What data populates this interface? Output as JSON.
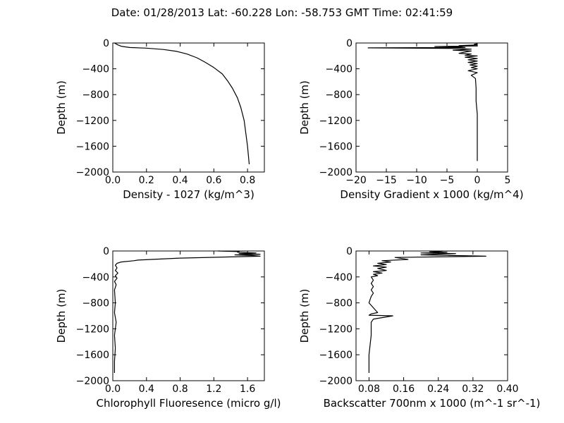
{
  "figure": {
    "suptitle": "Date: 01/28/2013  Lat:  -60.228 Lon:  -58.753  GMT Time: 02:41:59"
  },
  "chart_data": [
    {
      "type": "line",
      "xlabel": "Density - 1027 (kg/m^3)",
      "ylabel": "Depth (m)",
      "xlim": [
        0.0,
        0.9
      ],
      "ylim": [
        -2000,
        0
      ],
      "xticks": [
        0.0,
        0.2,
        0.4,
        0.6,
        0.8
      ],
      "xtick_labels": [
        "0.0",
        "0.2",
        "0.4",
        "0.6",
        "0.8"
      ],
      "yticks": [
        0,
        -400,
        -800,
        -1200,
        -1600,
        -2000
      ],
      "ytick_labels": [
        "0",
        "−400",
        "−800",
        "−1200",
        "−1600",
        "−2000"
      ],
      "grid": false,
      "series": [
        {
          "x": [
            0.01,
            0.03,
            0.05,
            0.1,
            0.2,
            0.3,
            0.38,
            0.44,
            0.5,
            0.55,
            0.6,
            0.65,
            0.68,
            0.71,
            0.74,
            0.76,
            0.78,
            0.79,
            0.8,
            0.81
          ],
          "y": [
            0,
            -30,
            -50,
            -70,
            -80,
            -100,
            -130,
            -170,
            -230,
            -300,
            -380,
            -480,
            -580,
            -700,
            -850,
            -1000,
            -1200,
            -1400,
            -1600,
            -1880
          ]
        }
      ]
    },
    {
      "type": "line",
      "xlabel": "Density Gradient x 1000 (kg/m^4)",
      "ylabel": "Depth (m)",
      "xlim": [
        -20,
        5
      ],
      "ylim": [
        -2000,
        0
      ],
      "xticks": [
        -20,
        -15,
        -10,
        -5,
        0,
        5
      ],
      "xtick_labels": [
        "−20",
        "−15",
        "−10",
        "−5",
        "0",
        "5"
      ],
      "yticks": [
        0,
        -400,
        -800,
        -1200,
        -1600,
        -2000
      ],
      "ytick_labels": [
        "0",
        "−400",
        "−800",
        "−1200",
        "−1600",
        "−2000"
      ],
      "grid": false,
      "series": [
        {
          "x": [
            0,
            -0.5,
            0,
            -3,
            0,
            -7,
            -3,
            -2,
            -18,
            -3,
            -1,
            -4,
            -1,
            -2,
            -3,
            -1,
            -2,
            0,
            -2,
            0,
            -1.5,
            0,
            -1.5,
            0,
            -1.2,
            0,
            -1,
            0,
            -1.5,
            0,
            -1,
            -0.3,
            -0.2,
            -0.2,
            0,
            0,
            0,
            0
          ],
          "y": [
            -10,
            -20,
            -30,
            -40,
            -45,
            -55,
            -60,
            -70,
            -75,
            -85,
            -95,
            -110,
            -125,
            -140,
            -160,
            -170,
            -190,
            -200,
            -220,
            -240,
            -260,
            -280,
            -300,
            -320,
            -340,
            -360,
            -380,
            -400,
            -430,
            -460,
            -500,
            -550,
            -700,
            -900,
            -1100,
            -1300,
            -1600,
            -1830
          ]
        }
      ]
    },
    {
      "type": "line",
      "xlabel": "Chlorophyll Fluoresence (micro g/l)",
      "ylabel": "Depth (m)",
      "xlim": [
        0.0,
        1.8
      ],
      "ylim": [
        -2000,
        0
      ],
      "xticks": [
        0.0,
        0.4,
        0.8,
        1.2,
        1.6
      ],
      "xtick_labels": [
        "0.0",
        "0.4",
        "0.8",
        "1.2",
        "1.6"
      ],
      "yticks": [
        0,
        -400,
        -800,
        -1200,
        -1600,
        -2000
      ],
      "ytick_labels": [
        "0",
        "−400",
        "−800",
        "−1200",
        "−1600",
        "−2000"
      ],
      "grid": false,
      "series": [
        {
          "x": [
            1.25,
            1.5,
            1.48,
            1.7,
            1.5,
            1.75,
            1.45,
            1.65,
            1.75,
            0.8,
            0.3,
            0.25,
            0.1,
            0.05,
            0.03,
            0.05,
            0.03,
            0.06,
            0.03,
            0.05,
            0.02,
            0.04,
            0.02,
            0.03,
            0.02,
            0.04,
            0.02,
            0.03,
            0.02,
            0.02
          ],
          "y": [
            0,
            -10,
            -20,
            -30,
            -40,
            -50,
            -60,
            -70,
            -80,
            -110,
            -140,
            -150,
            -170,
            -190,
            -220,
            -260,
            -300,
            -340,
            -380,
            -420,
            -470,
            -520,
            -600,
            -800,
            -950,
            -1100,
            -1300,
            -1500,
            -1700,
            -1880
          ]
        }
      ]
    },
    {
      "type": "line",
      "xlabel": "Backscatter 700nm x 1000 (m^-1 sr^-1)",
      "ylabel": "Depth (m)",
      "xlim": [
        0.05,
        0.4
      ],
      "ylim": [
        -2000,
        0
      ],
      "xticks": [
        0.08,
        0.16,
        0.24,
        0.32,
        0.4
      ],
      "xtick_labels": [
        "0.08",
        "0.16",
        "0.24",
        "0.32",
        "0.40"
      ],
      "yticks": [
        0,
        -400,
        -800,
        -1200,
        -1600,
        -2000
      ],
      "ytick_labels": [
        "0",
        "−400",
        "−800",
        "−1200",
        "−1600",
        "−2000"
      ],
      "grid": false,
      "series": [
        {
          "x": [
            0.25,
            0.22,
            0.26,
            0.2,
            0.28,
            0.23,
            0.2,
            0.35,
            0.14,
            0.17,
            0.11,
            0.13,
            0.1,
            0.12,
            0.09,
            0.12,
            0.1,
            0.12,
            0.09,
            0.11,
            0.09,
            0.1,
            0.085,
            0.09,
            0.085,
            0.09,
            0.085,
            0.09,
            0.085,
            0.08,
            0.1,
            0.085,
            0.08,
            0.135,
            0.09,
            0.085,
            0.085,
            0.08,
            0.08
          ],
          "y": [
            0,
            -10,
            -20,
            -30,
            -40,
            -50,
            -60,
            -80,
            -100,
            -130,
            -150,
            -170,
            -190,
            -210,
            -230,
            -250,
            -270,
            -300,
            -320,
            -340,
            -360,
            -380,
            -400,
            -450,
            -500,
            -550,
            -600,
            -650,
            -700,
            -800,
            -950,
            -970,
            -990,
            -1000,
            -1050,
            -1100,
            -1300,
            -1600,
            -1880
          ]
        }
      ]
    }
  ]
}
